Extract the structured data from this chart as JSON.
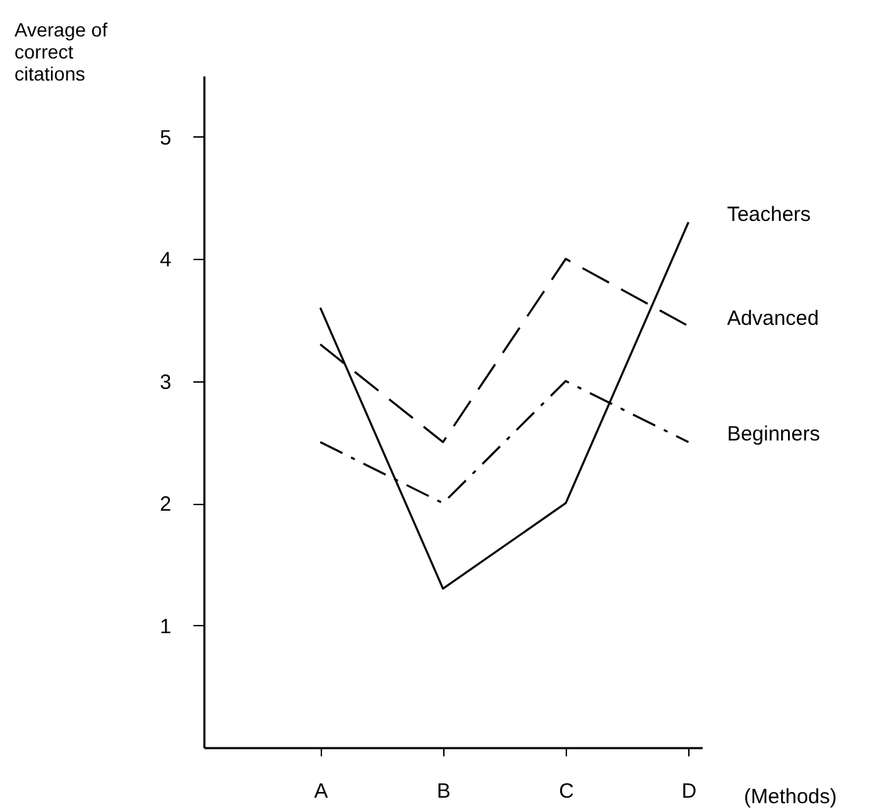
{
  "chart_data": {
    "type": "line",
    "ylabel": "Average of correct citations",
    "xlabel": "(Methods)",
    "categories": [
      "A",
      "B",
      "C",
      "D"
    ],
    "series": [
      {
        "name": "Teachers",
        "color": "#000000",
        "line_style": "solid",
        "values": [
          3.6,
          1.3,
          2.0,
          4.3
        ]
      },
      {
        "name": "Advanced",
        "color": "#000000",
        "line_style": "dashed",
        "values": [
          3.3,
          2.5,
          4.0,
          3.45
        ]
      },
      {
        "name": "Beginners",
        "color": "#000000",
        "line_style": "dashdot",
        "values": [
          2.5,
          2.0,
          3.0,
          2.5
        ]
      }
    ],
    "ylim": [
      0,
      5.5
    ],
    "yticks": [
      1,
      2,
      3,
      4,
      5
    ],
    "legend": false,
    "marker": "none"
  }
}
